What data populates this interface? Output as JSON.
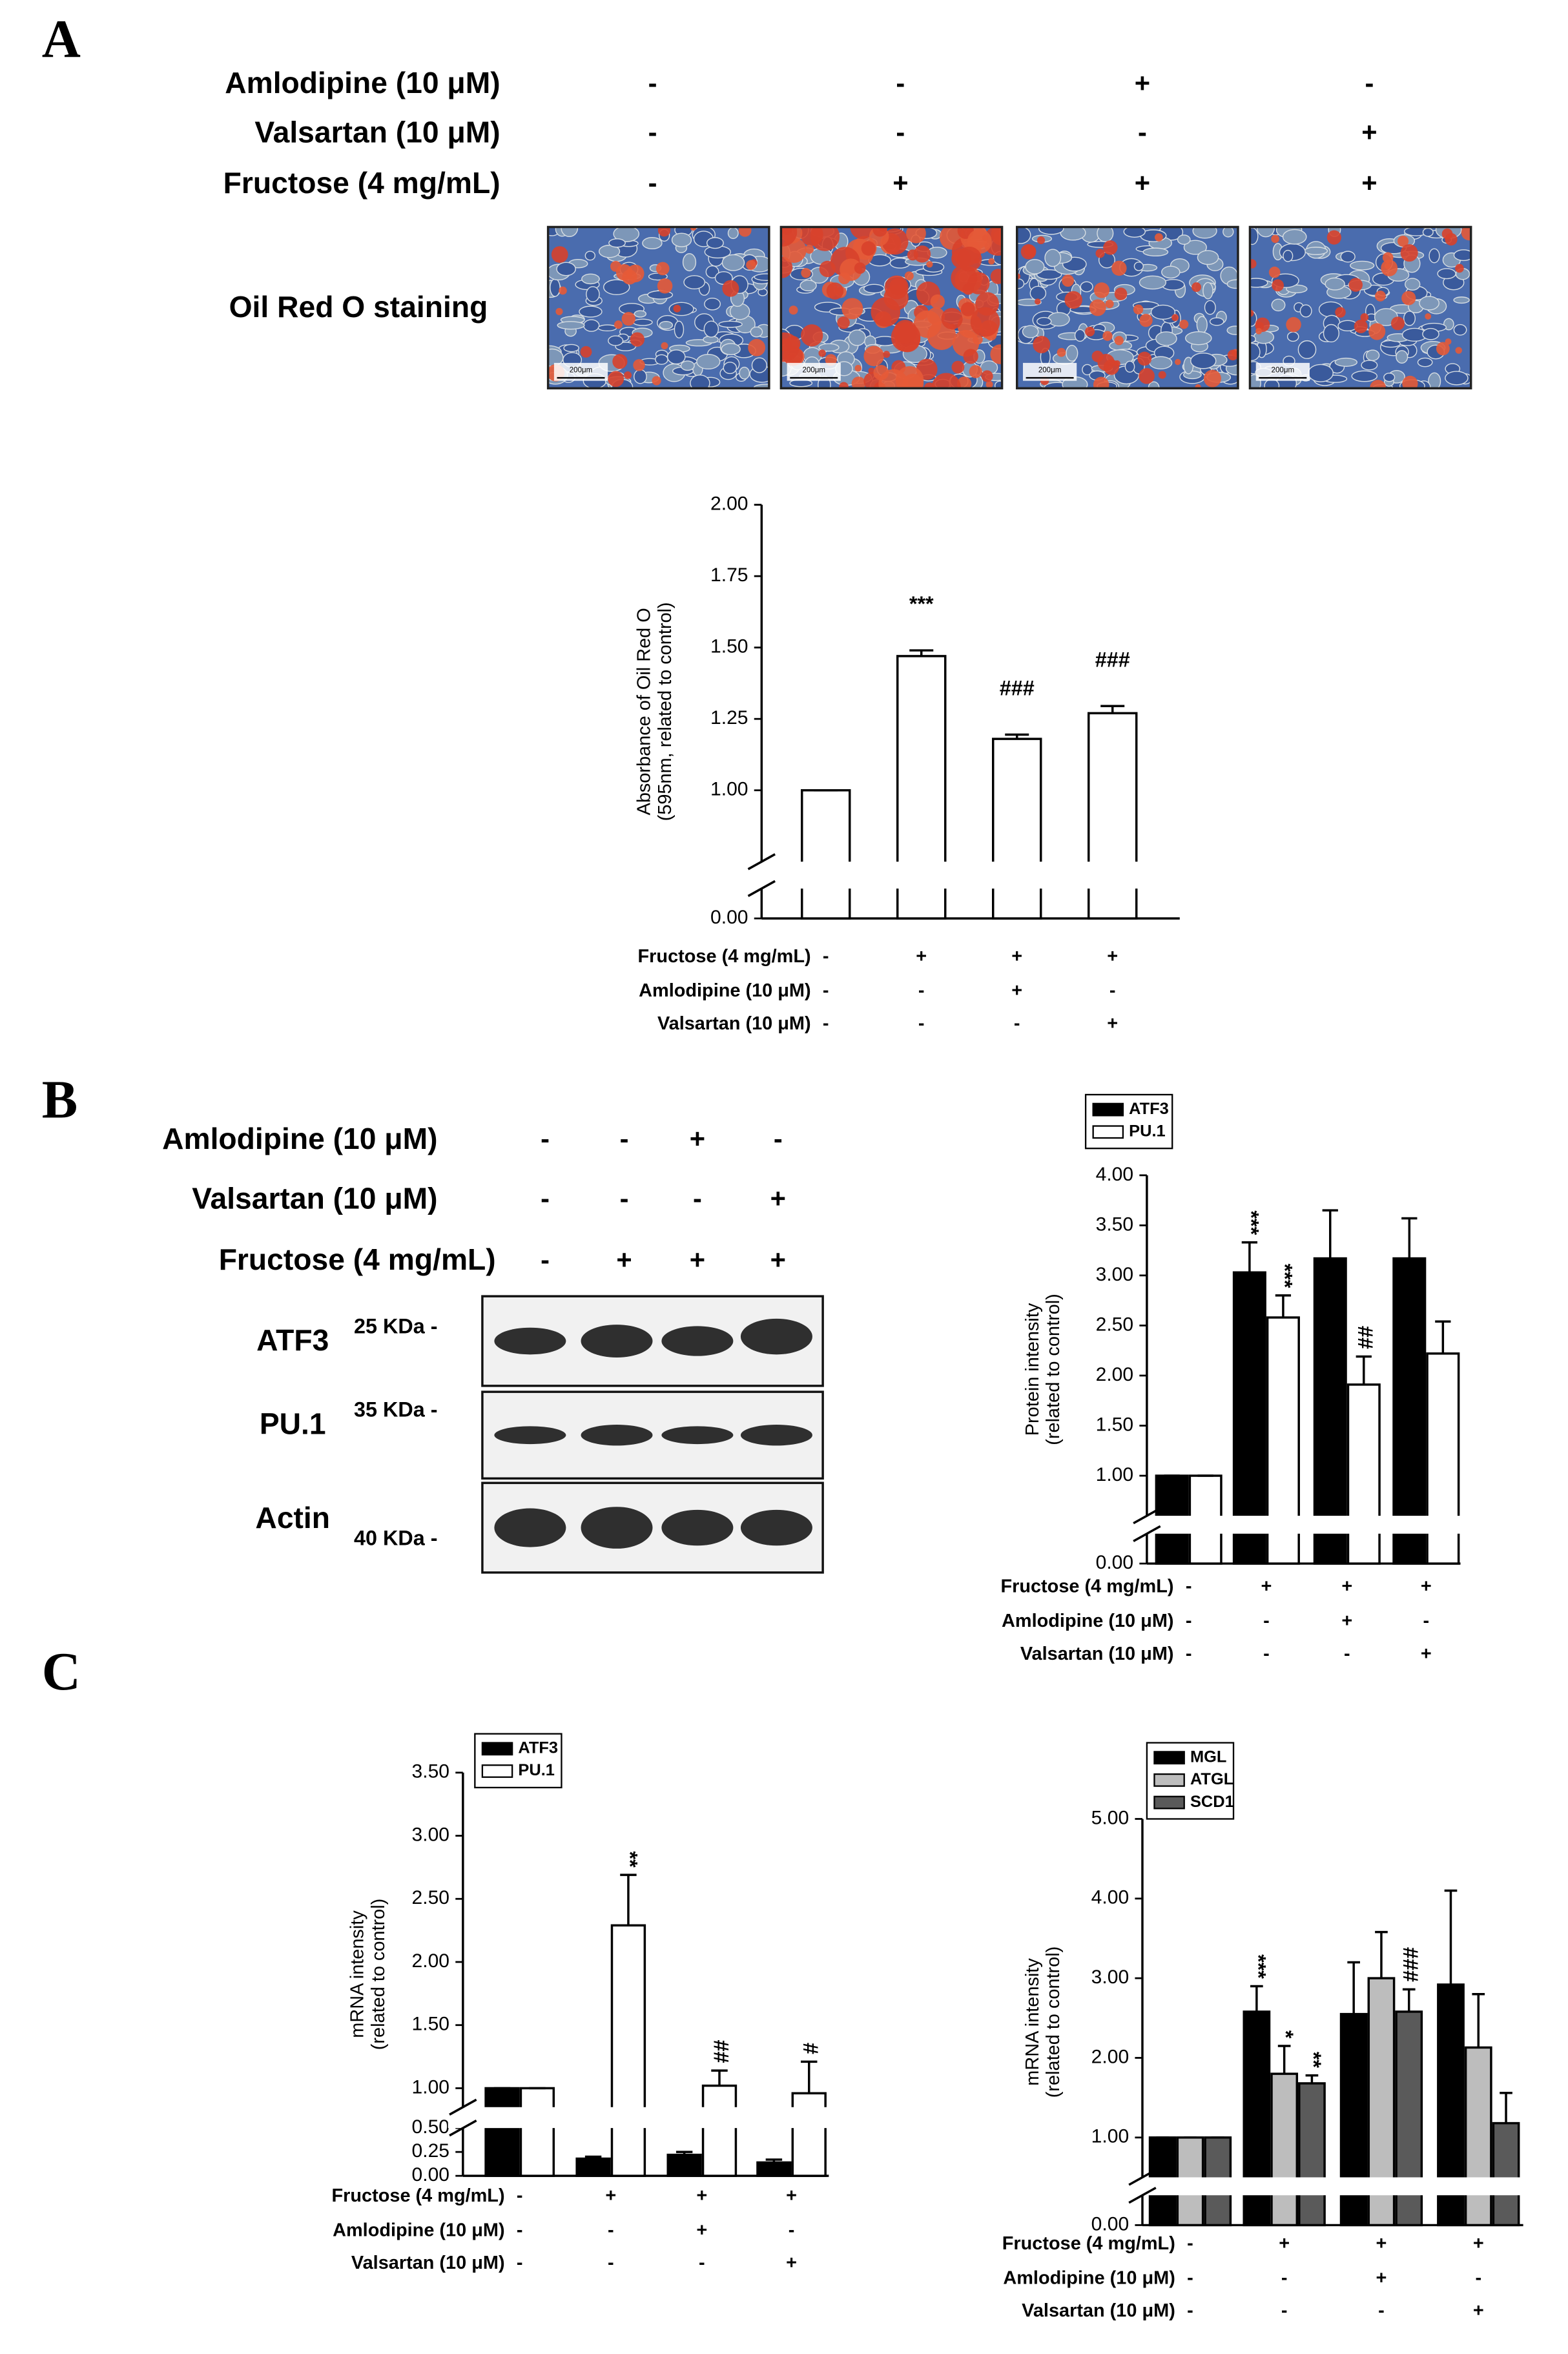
{
  "panel_a": {
    "letter": "A",
    "treatments": [
      {
        "label": "Amlodipine (10 μM)",
        "signs": [
          "-",
          "-",
          "+",
          "-"
        ]
      },
      {
        "label": "Valsartan (10 μM)",
        "signs": [
          "-",
          "-",
          "-",
          "+"
        ]
      },
      {
        "label": "Fructose (4 mg/mL)",
        "signs": [
          "-",
          "+",
          "+",
          "+"
        ]
      }
    ],
    "image_label": "Oil Red O staining",
    "scale_bar": "200μm"
  },
  "panel_b": {
    "letter": "B",
    "treatments": [
      {
        "label": "Amlodipine (10 μM)",
        "signs": [
          "-",
          "-",
          "+",
          "-"
        ]
      },
      {
        "label": "Valsartan (10 μM)",
        "signs": [
          "-",
          "-",
          "-",
          "+"
        ]
      },
      {
        "label": "Fructose (4 mg/mL)",
        "signs": [
          "-",
          "+",
          "+",
          "+"
        ]
      }
    ],
    "blots": [
      {
        "protein": "ATF3",
        "size": "25 KDa -"
      },
      {
        "protein": "PU.1",
        "size": "35 KDa -"
      },
      {
        "protein": "Actin",
        "size": "40 KDa -"
      }
    ]
  },
  "panel_c": {
    "letter": "C"
  },
  "chart_data": [
    {
      "type": "bar",
      "y_label": [
        "Absorbance of Oil Red O",
        "(595nm, related to control)"
      ],
      "ylim": [
        0,
        2
      ],
      "y_break": [
        0.1,
        0.75
      ],
      "yticks": [
        {
          "value": 0,
          "label": "0.00"
        },
        {
          "value": 1,
          "label": "1.00"
        },
        1.25,
        {
          "value": 1.5,
          "label": "1.50"
        },
        1.75,
        {
          "value": 2,
          "label": "2.00"
        }
      ],
      "series": [
        {
          "color": "#ffffff",
          "values": [
            1.0,
            1.47,
            1.18,
            1.27
          ],
          "errors": [
            0,
            0.02,
            0.015,
            0.025
          ],
          "annotations": [
            null,
            "***",
            "###",
            "###"
          ]
        }
      ],
      "treatments": [
        {
          "label": "Fructose (4 mg/mL)",
          "signs": [
            "-",
            "+",
            "+",
            "+"
          ]
        },
        {
          "label": "Amlodipine (10 μM)",
          "signs": [
            "-",
            "-",
            "+",
            "-"
          ]
        },
        {
          "label": "Valsartan (10 μM)",
          "signs": [
            "-",
            "-",
            "-",
            "+"
          ]
        }
      ]
    },
    {
      "type": "bar",
      "y_label": [
        "Protein intensity",
        "(related to control)"
      ],
      "ylim": [
        0,
        4
      ],
      "y_break": [
        0.1,
        0.6
      ],
      "legend": "upper left",
      "yticks": [
        {
          "value": 0,
          "label": "0.00"
        },
        {
          "value": 1,
          "label": "1.00"
        },
        {
          "value": 1.5,
          "label": "1.50"
        },
        {
          "value": 2,
          "label": "2.00"
        },
        {
          "value": 2.5,
          "label": "2.50"
        },
        {
          "value": 3,
          "label": "3.00"
        },
        {
          "value": 3.5,
          "label": "3.50"
        },
        {
          "value": 4,
          "label": "4.00"
        }
      ],
      "series": [
        {
          "name": "ATF3",
          "color": "#000000",
          "values": [
            1.0,
            3.03,
            3.17,
            3.17
          ],
          "errors": [
            0,
            0.3,
            0.48,
            0.4
          ],
          "annotations": [
            null,
            "***",
            null,
            null
          ]
        },
        {
          "name": "PU.1",
          "color": "#ffffff",
          "values": [
            1.0,
            2.58,
            1.91,
            2.22
          ],
          "errors": [
            0,
            0.22,
            0.28,
            0.32
          ],
          "annotations": [
            null,
            "***",
            "##",
            null
          ]
        }
      ],
      "treatments": [
        {
          "label": "Fructose (4 mg/mL)",
          "signs": [
            "-",
            "+",
            "+",
            "+"
          ]
        },
        {
          "label": "Amlodipine (10 μM)",
          "signs": [
            "-",
            "-",
            "+",
            "-"
          ]
        },
        {
          "label": "Valsartan (10 μM)",
          "signs": [
            "-",
            "-",
            "-",
            "+"
          ]
        }
      ]
    },
    {
      "type": "bar",
      "y_label": [
        "mRNA intensity",
        "(related to control)"
      ],
      "ylim": [
        0,
        3.5
      ],
      "y_break": [
        0.5,
        0.85
      ],
      "legend": "upper left",
      "yticks": [
        {
          "value": 0,
          "label": "0.00"
        },
        0.25,
        {
          "value": 0.5,
          "label": "0.50"
        },
        {
          "value": 1,
          "label": "1.00"
        },
        {
          "value": 1.5,
          "label": "1.50"
        },
        {
          "value": 2,
          "label": "2.00"
        },
        {
          "value": 2.5,
          "label": "2.50"
        },
        {
          "value": 3,
          "label": "3.00"
        },
        {
          "value": 3.5,
          "label": "3.50"
        }
      ],
      "series": [
        {
          "name": "ATF3",
          "color": "#000000",
          "values": [
            1.0,
            0.18,
            0.22,
            0.14
          ],
          "errors": [
            0,
            0.02,
            0.03,
            0.03
          ],
          "annotations": [
            null,
            null,
            null,
            null
          ]
        },
        {
          "name": "PU.1",
          "color": "#ffffff",
          "values": [
            1.0,
            2.29,
            1.02,
            0.96
          ],
          "errors": [
            0,
            0.4,
            0.12,
            0.25
          ],
          "annotations": [
            null,
            "**",
            "##",
            "#"
          ]
        }
      ],
      "treatments": [
        {
          "label": "Fructose (4 mg/mL)",
          "signs": [
            "-",
            "+",
            "+",
            "+"
          ]
        },
        {
          "label": "Amlodipine (10 μM)",
          "signs": [
            "-",
            "-",
            "+",
            "-"
          ]
        },
        {
          "label": "Valsartan (10 μM)",
          "signs": [
            "-",
            "-",
            "-",
            "+"
          ]
        }
      ]
    },
    {
      "type": "bar",
      "y_label": [
        "mRNA intensity",
        "(related to control)"
      ],
      "ylim": [
        0,
        5
      ],
      "y_break": [
        0.1,
        0.5
      ],
      "legend": "upper left",
      "yticks": [
        {
          "value": 0,
          "label": "0.00"
        },
        {
          "value": 1,
          "label": "1.00"
        },
        {
          "value": 2,
          "label": "2.00"
        },
        {
          "value": 3,
          "label": "3.00"
        },
        {
          "value": 4,
          "label": "4.00"
        },
        {
          "value": 5,
          "label": "5.00"
        }
      ],
      "series": [
        {
          "name": "MGL",
          "color": "#000000",
          "values": [
            1.0,
            2.58,
            2.55,
            2.92
          ],
          "errors": [
            0,
            0.32,
            0.65,
            1.18
          ],
          "annotations": [
            null,
            "***",
            null,
            null
          ]
        },
        {
          "name": "ATGL",
          "color": "#bdbdbd",
          "values": [
            1.0,
            1.8,
            3.0,
            2.13
          ],
          "errors": [
            0,
            0.35,
            0.58,
            0.67
          ],
          "annotations": [
            null,
            "*",
            null,
            null
          ]
        },
        {
          "name": "SCD1",
          "color": "#5a5a5a",
          "values": [
            1.0,
            1.68,
            2.58,
            1.18
          ],
          "errors": [
            0,
            0.1,
            0.28,
            0.38
          ],
          "annotations": [
            null,
            "**",
            "###",
            null
          ]
        }
      ],
      "treatments": [
        {
          "label": "Fructose (4 mg/mL)",
          "signs": [
            "-",
            "+",
            "+",
            "+"
          ]
        },
        {
          "label": "Amlodipine (10 μM)",
          "signs": [
            "-",
            "-",
            "+",
            "-"
          ]
        },
        {
          "label": "Valsartan (10 μM)",
          "signs": [
            "-",
            "-",
            "-",
            "+"
          ]
        }
      ]
    }
  ]
}
